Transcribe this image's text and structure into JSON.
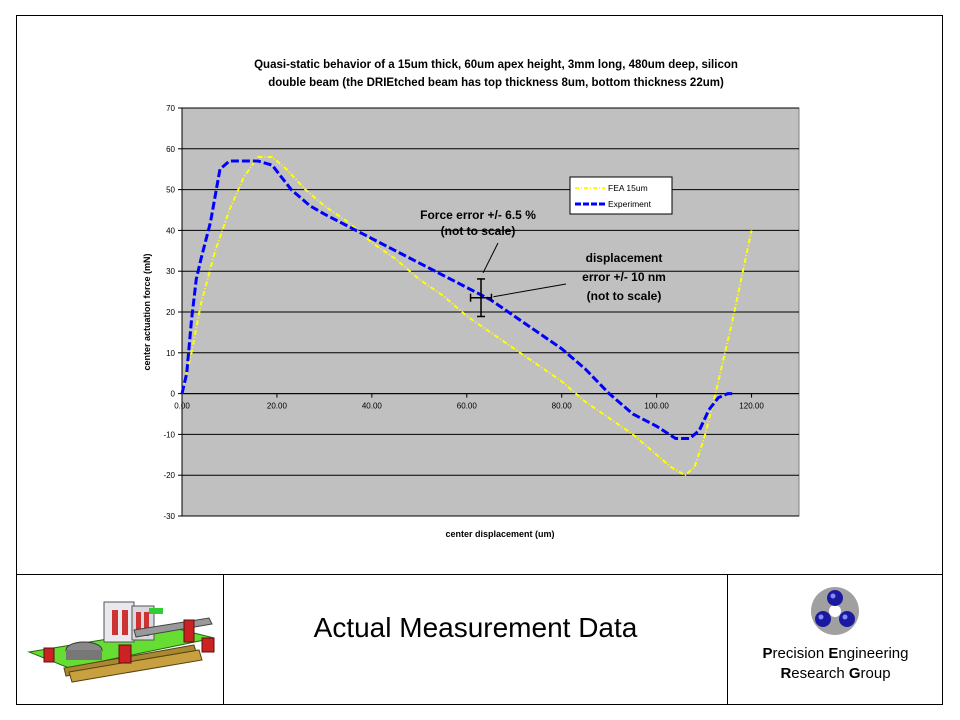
{
  "chart_data": {
    "type": "line",
    "title_line1": "Quasi-static behavior of a 15um thick, 60um apex height, 3mm long, 480um deep, silicon",
    "title_line2": "double beam (the DRIEtched beam has top thickness 8um, bottom thickness 22um)",
    "xlabel": "center displacement (um)",
    "ylabel": "center actuation force (mN)",
    "xlim": [
      0,
      130
    ],
    "ylim": [
      -30,
      70
    ],
    "xticks": [
      "0.00",
      "20.00",
      "40.00",
      "60.00",
      "80.00",
      "100.00",
      "120.00"
    ],
    "xtick_values": [
      0,
      20,
      40,
      60,
      80,
      100,
      120
    ],
    "yticks": [
      "70",
      "60",
      "50",
      "40",
      "30",
      "20",
      "10",
      "0",
      "-10",
      "-20",
      "-30"
    ],
    "ytick_values": [
      70,
      60,
      50,
      40,
      30,
      20,
      10,
      0,
      -10,
      -20,
      -30
    ],
    "grid": true,
    "plot_background": "#c0c0c0",
    "legend_position": "right",
    "series": [
      {
        "name": "FEA 15um",
        "color": "#ffff00",
        "style": "dash-dot",
        "x": [
          0,
          2,
          4,
          7,
          10,
          13,
          16,
          19,
          22,
          26,
          30,
          35,
          40,
          45,
          50,
          55,
          60,
          65,
          70,
          75,
          80,
          85,
          90,
          95,
          100,
          103,
          106,
          108,
          110,
          112,
          114,
          116,
          118,
          120
        ],
        "y": [
          0,
          10,
          22,
          35,
          45,
          53,
          58,
          58,
          55,
          50,
          46,
          42,
          37,
          33,
          28,
          24,
          19,
          15,
          11,
          7,
          3,
          -2,
          -6,
          -10,
          -15,
          -18,
          -20,
          -18,
          -11,
          -2,
          8,
          18,
          29,
          40
        ]
      },
      {
        "name": "Experiment",
        "color": "#0000ff",
        "style": "dashed",
        "x": [
          0,
          1,
          2,
          3,
          4,
          6,
          8,
          10,
          13,
          16,
          19,
          21,
          23,
          25,
          27,
          30,
          35,
          40,
          45,
          50,
          55,
          60,
          65,
          70,
          75,
          80,
          85,
          90,
          95,
          100,
          104,
          107,
          109,
          111,
          113,
          115,
          116
        ],
        "y": [
          0,
          5,
          18,
          28,
          33,
          42,
          55,
          57,
          57,
          57,
          56,
          53,
          50,
          48,
          46,
          44,
          41,
          38,
          35,
          32,
          29,
          26,
          23,
          19,
          15,
          11,
          6,
          0,
          -5,
          -8,
          -11,
          -11,
          -9,
          -4,
          -1,
          0,
          0
        ]
      }
    ],
    "annotations": [
      {
        "text_lines": [
          "Force error +/- 6.5 %",
          "(not to scale)"
        ]
      },
      {
        "text_lines": [
          "displacement",
          "error +/- 10 nm",
          "(not to scale)"
        ]
      }
    ],
    "error_bar": {
      "x": 63,
      "y": 23.5,
      "y_err": 4.6,
      "x_err": 2.2
    }
  },
  "footer": {
    "title": "Actual Measurement Data",
    "org_line1_first": "P",
    "org_line1_rest": "recision ",
    "org_line1_second": "E",
    "org_line1_second_rest": "ngineering",
    "org_line2_first": "R",
    "org_line2_rest": "esearch ",
    "org_line2_second": "G",
    "org_line2_second_rest": "roup"
  },
  "icons": {
    "logo": "three-sphere-logo-icon",
    "mechanism": "flexure-mechanism-illustration-icon"
  }
}
